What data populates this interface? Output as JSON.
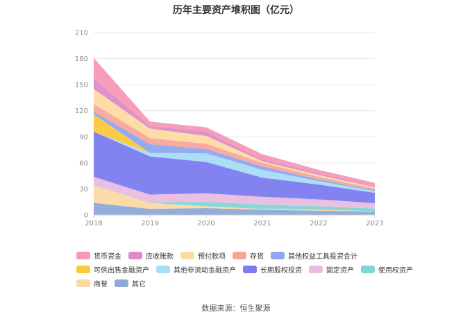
{
  "chart_data": {
    "type": "area",
    "stacked": true,
    "title": "历年主要资产堆积图（亿元）",
    "x": [
      "2018",
      "2019",
      "2020",
      "2021",
      "2022",
      "2023"
    ],
    "ylim": [
      0,
      210
    ],
    "yticks": [
      "0",
      "30",
      "60",
      "90",
      "120",
      "150",
      "180",
      "210"
    ],
    "grid": true,
    "legend_position": "bottom",
    "series": [
      {
        "name": "其它",
        "color": "#8ea9d8",
        "values": [
          14,
          7,
          8,
          6,
          5,
          4
        ]
      },
      {
        "name": "商誉",
        "color": "#fcd9a4",
        "values": [
          20,
          7,
          2,
          1,
          1,
          0.5
        ]
      },
      {
        "name": "使用权资产",
        "color": "#7fd6d6",
        "values": [
          0,
          0.5,
          5,
          5,
          4,
          3
        ]
      },
      {
        "name": "固定资产",
        "color": "#e8bce0",
        "values": [
          10,
          9,
          10,
          9,
          8,
          6
        ]
      },
      {
        "name": "长期股权投资",
        "color": "#7b7cf0",
        "values": [
          52,
          44,
          36,
          22,
          17,
          12
        ]
      },
      {
        "name": "其他非流动金融资产",
        "color": "#a8dcf7",
        "values": [
          0,
          4,
          10,
          9,
          4,
          2
        ]
      },
      {
        "name": "可供出售金融资产",
        "color": "#fcc83c",
        "values": [
          20,
          0,
          0,
          0,
          0,
          0
        ]
      },
      {
        "name": "其他权益工具投资合计",
        "color": "#8fa6f0",
        "values": [
          3,
          10,
          5,
          4,
          2,
          1
        ]
      },
      {
        "name": "存货",
        "color": "#f9a69a",
        "values": [
          9,
          7,
          6,
          4,
          3,
          2
        ]
      },
      {
        "name": "预付款项",
        "color": "#fddba0",
        "values": [
          17,
          11,
          9,
          2,
          2,
          1.5
        ]
      },
      {
        "name": "应收账款",
        "color": "#dc8cc6",
        "values": [
          12,
          3,
          5,
          2,
          2,
          1
        ]
      },
      {
        "name": "货币资金",
        "color": "#f798b8",
        "values": [
          24,
          5,
          5,
          6,
          4,
          4
        ]
      }
    ],
    "legend_rows": [
      [
        {
          "name": "货币资金",
          "color": "#f798b8"
        },
        {
          "name": "应收账款",
          "color": "#dc8cc6"
        },
        {
          "name": "预付款项",
          "color": "#fddba0"
        },
        {
          "name": "存货",
          "color": "#f9a69a"
        },
        {
          "name": "其他权益工具投资合计",
          "color": "#8fa6f0"
        }
      ],
      [
        {
          "name": "可供出售金融资产",
          "color": "#fcc83c"
        },
        {
          "name": "其他非流动金融资产",
          "color": "#a8dcf7"
        },
        {
          "name": "长期股权投资",
          "color": "#7b7cf0"
        },
        {
          "name": "固定资产",
          "color": "#e8bce0"
        },
        {
          "name": "使用权资产",
          "color": "#7fd6d6"
        }
      ],
      [
        {
          "name": "商誉",
          "color": "#fcd9a4"
        },
        {
          "name": "其它",
          "color": "#8ea9d8"
        }
      ]
    ]
  },
  "footer": {
    "source": "数据来源：恒生聚源"
  }
}
